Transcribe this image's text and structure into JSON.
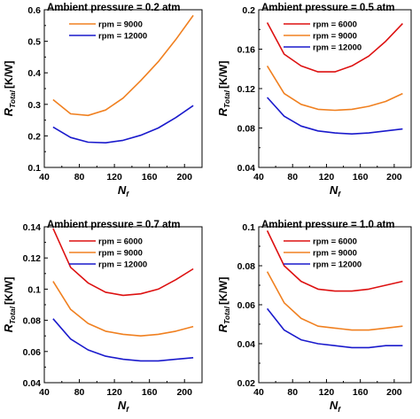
{
  "chart_data": [
    {
      "type": "line",
      "title": "Ambient pressure = 0.2 atm",
      "xlabel": "N",
      "xlabel_sub": "f",
      "ylabel": "R",
      "ylabel_sub": "Total",
      "ylabel_unit": "[K/W]",
      "xlim": [
        40,
        220
      ],
      "ylim": [
        0.1,
        0.6
      ],
      "xticks": [
        40,
        80,
        120,
        160,
        200
      ],
      "yticks": [
        0.1,
        0.2,
        0.3,
        0.4,
        0.5,
        0.6
      ],
      "ytick_labels": [
        "0.1",
        "0.2",
        "0.3",
        "0.4",
        "0.5",
        "0.6"
      ],
      "x": [
        50,
        70,
        90,
        110,
        130,
        150,
        170,
        190,
        210
      ],
      "series": [
        {
          "name": "rpm = 9000",
          "color": "#f08020",
          "values": [
            0.315,
            0.27,
            0.265,
            0.282,
            0.32,
            0.375,
            0.435,
            0.505,
            0.582
          ]
        },
        {
          "name": "rpm = 12000",
          "color": "#1a1acc",
          "values": [
            0.228,
            0.195,
            0.18,
            0.178,
            0.186,
            0.202,
            0.225,
            0.258,
            0.296
          ]
        }
      ],
      "grid": false,
      "legend": "top-left"
    },
    {
      "type": "line",
      "title": "Ambient pressure = 0.5 atm",
      "xlabel": "N",
      "xlabel_sub": "f",
      "ylabel": "R",
      "ylabel_sub": "Total",
      "ylabel_unit": "[K/W]",
      "xlim": [
        40,
        220
      ],
      "ylim": [
        0.04,
        0.2
      ],
      "xticks": [
        40,
        80,
        120,
        160,
        200
      ],
      "yticks": [
        0.04,
        0.08,
        0.12,
        0.16,
        0.2
      ],
      "ytick_labels": [
        "0.04",
        "0.08",
        "0.12",
        "0.16",
        "0.2"
      ],
      "x": [
        50,
        70,
        90,
        110,
        130,
        150,
        170,
        190,
        210
      ],
      "series": [
        {
          "name": "rpm = 6000",
          "color": "#dd1111",
          "values": [
            0.187,
            0.155,
            0.143,
            0.137,
            0.137,
            0.143,
            0.153,
            0.168,
            0.186
          ]
        },
        {
          "name": "rpm = 9000",
          "color": "#f08020",
          "values": [
            0.143,
            0.115,
            0.104,
            0.099,
            0.098,
            0.099,
            0.102,
            0.107,
            0.115
          ]
        },
        {
          "name": "rpm = 12000",
          "color": "#1a1acc",
          "values": [
            0.111,
            0.092,
            0.082,
            0.077,
            0.075,
            0.074,
            0.075,
            0.077,
            0.079
          ]
        }
      ],
      "grid": false,
      "legend": "top-left"
    },
    {
      "type": "line",
      "title": "Ambient pressure = 0.7 atm",
      "xlabel": "N",
      "xlabel_sub": "f",
      "ylabel": "R",
      "ylabel_sub": "Total",
      "ylabel_unit": "[K/W]",
      "xlim": [
        40,
        220
      ],
      "ylim": [
        0.04,
        0.14
      ],
      "xticks": [
        40,
        80,
        120,
        160,
        200
      ],
      "yticks": [
        0.04,
        0.06,
        0.08,
        0.1,
        0.12,
        0.14
      ],
      "ytick_labels": [
        "0.04",
        "0.06",
        "0.08",
        "0.1",
        "0.12",
        "0.14"
      ],
      "x": [
        50,
        70,
        90,
        110,
        130,
        150,
        170,
        190,
        210
      ],
      "series": [
        {
          "name": "rpm = 6000",
          "color": "#dd1111",
          "values": [
            0.139,
            0.114,
            0.104,
            0.098,
            0.096,
            0.097,
            0.1,
            0.106,
            0.113
          ]
        },
        {
          "name": "rpm = 9000",
          "color": "#f08020",
          "values": [
            0.105,
            0.087,
            0.078,
            0.073,
            0.071,
            0.07,
            0.071,
            0.073,
            0.076
          ]
        },
        {
          "name": "rpm = 12000",
          "color": "#1a1acc",
          "values": [
            0.081,
            0.068,
            0.061,
            0.057,
            0.055,
            0.054,
            0.054,
            0.055,
            0.056
          ]
        }
      ],
      "grid": false,
      "legend": "top-left"
    },
    {
      "type": "line",
      "title": "Ambient pressure = 1.0 atm",
      "xlabel": "N",
      "xlabel_sub": "f",
      "ylabel": "R",
      "ylabel_sub": "Total",
      "ylabel_unit": "[K/W]",
      "xlim": [
        40,
        220
      ],
      "ylim": [
        0.02,
        0.1
      ],
      "xticks": [
        40,
        80,
        120,
        160,
        200
      ],
      "yticks": [
        0.02,
        0.04,
        0.06,
        0.08,
        0.1
      ],
      "ytick_labels": [
        "0.02",
        "0.04",
        "0.06",
        "0.08",
        "0.1"
      ],
      "x": [
        50,
        70,
        90,
        110,
        130,
        150,
        170,
        190,
        210
      ],
      "series": [
        {
          "name": "rpm = 6000",
          "color": "#dd1111",
          "values": [
            0.098,
            0.08,
            0.072,
            0.068,
            0.067,
            0.067,
            0.068,
            0.07,
            0.072
          ]
        },
        {
          "name": "rpm = 9000",
          "color": "#f08020",
          "values": [
            0.077,
            0.061,
            0.053,
            0.049,
            0.048,
            0.047,
            0.047,
            0.048,
            0.049
          ]
        },
        {
          "name": "rpm = 12000",
          "color": "#1a1acc",
          "values": [
            0.058,
            0.047,
            0.042,
            0.04,
            0.039,
            0.038,
            0.038,
            0.039,
            0.039
          ]
        }
      ],
      "grid": false,
      "legend": "top-left"
    }
  ]
}
